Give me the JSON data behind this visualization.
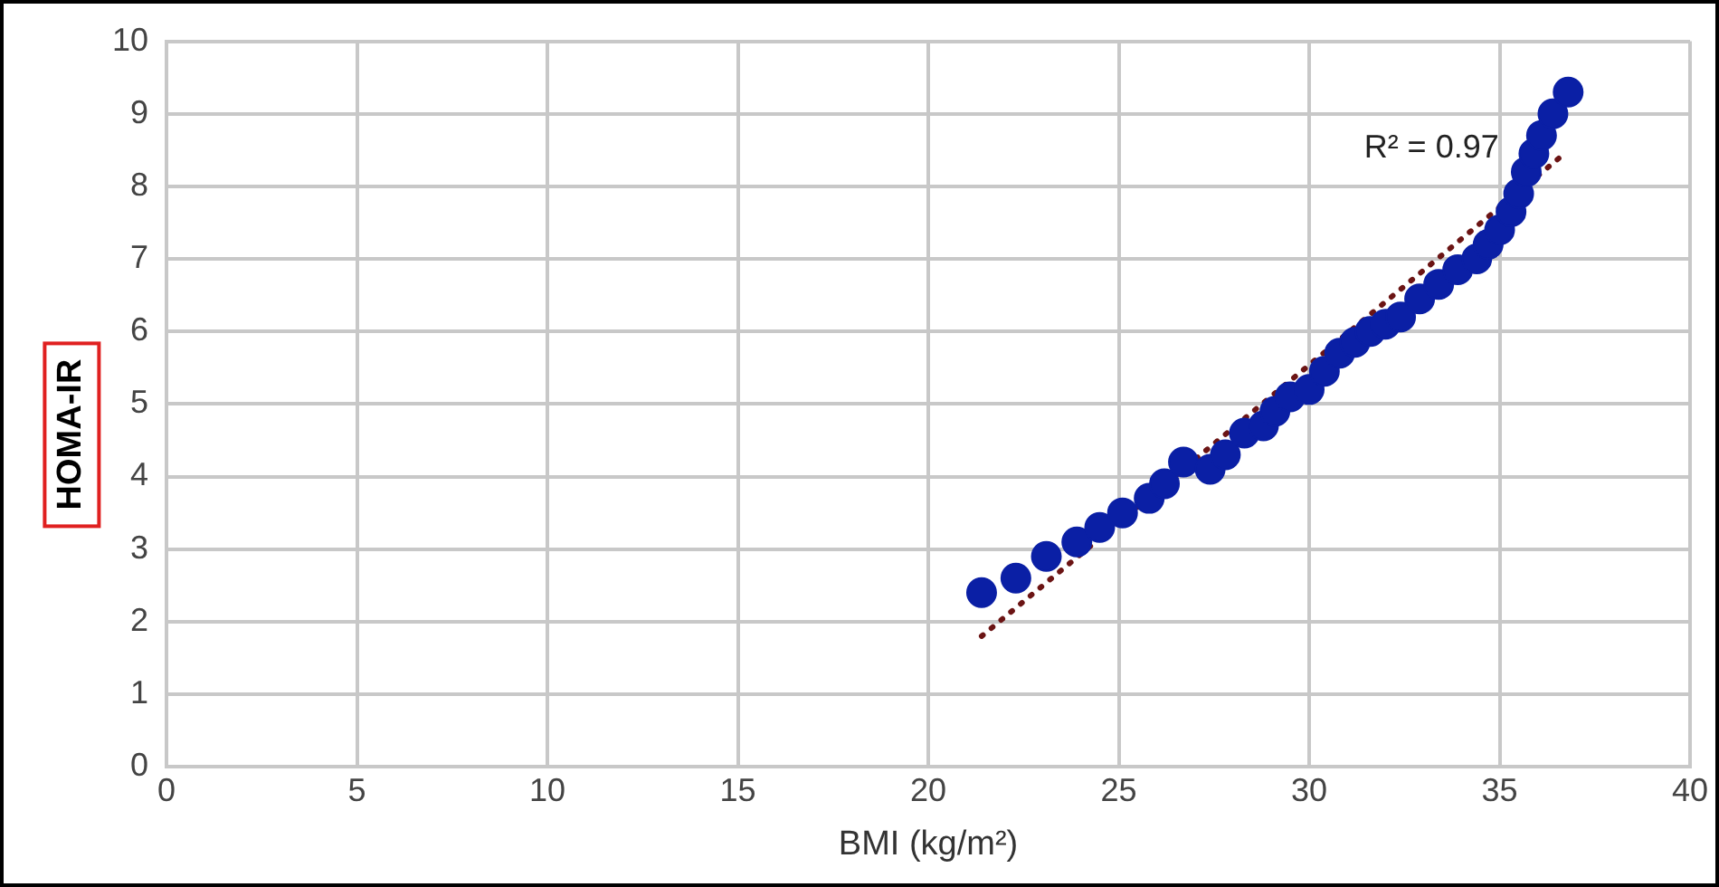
{
  "chart_data": {
    "type": "scatter",
    "xlabel": "BMI (kg/m²)",
    "ylabel": "HOMA-IR",
    "xlim": [
      0,
      40
    ],
    "xticks": [
      0,
      5,
      10,
      15,
      20,
      25,
      30,
      35,
      40
    ],
    "ylim": [
      0,
      10
    ],
    "yticks": [
      0,
      1,
      2,
      3,
      4,
      5,
      6,
      7,
      8,
      9,
      10
    ],
    "grid": true,
    "legend": false,
    "marker": "circle",
    "annotations": [
      "R² = 0.97"
    ],
    "series": [
      {
        "type": "scatter",
        "color": "#0a1fa5",
        "x": [
          21.4,
          22.3,
          23.1,
          23.9,
          24.5,
          25.1,
          25.8,
          26.2,
          26.7,
          27.4,
          27.8,
          28.3,
          28.8,
          29.1,
          29.5,
          30.0,
          30.4,
          30.8,
          31.2,
          31.6,
          32.0,
          32.4,
          32.9,
          33.4,
          33.9,
          34.4,
          34.7,
          35.0,
          35.3,
          35.5,
          35.7,
          35.9,
          36.1,
          36.4,
          36.6,
          36.8
        ],
        "values": [
          2.4,
          2.6,
          2.9,
          3.1,
          3.3,
          3.5,
          3.7,
          3.9,
          4.2,
          4.1,
          4.3,
          4.6,
          4.7,
          4.9,
          5.1,
          5.2,
          5.45,
          5.7,
          5.85,
          6.0,
          6.1,
          6.2,
          6.45,
          6.65,
          6.85,
          7.0,
          7.2,
          7.4,
          7.65,
          7.9,
          8.2,
          8.45,
          8.7,
          9.0,
          null,
          9.3
        ]
      },
      {
        "type": "line",
        "color": "#6b1414",
        "line_style": "dotted",
        "marker": "none",
        "x": [
          21.4,
          36.7
        ],
        "values": [
          1.8,
          8.45
        ]
      }
    ]
  }
}
